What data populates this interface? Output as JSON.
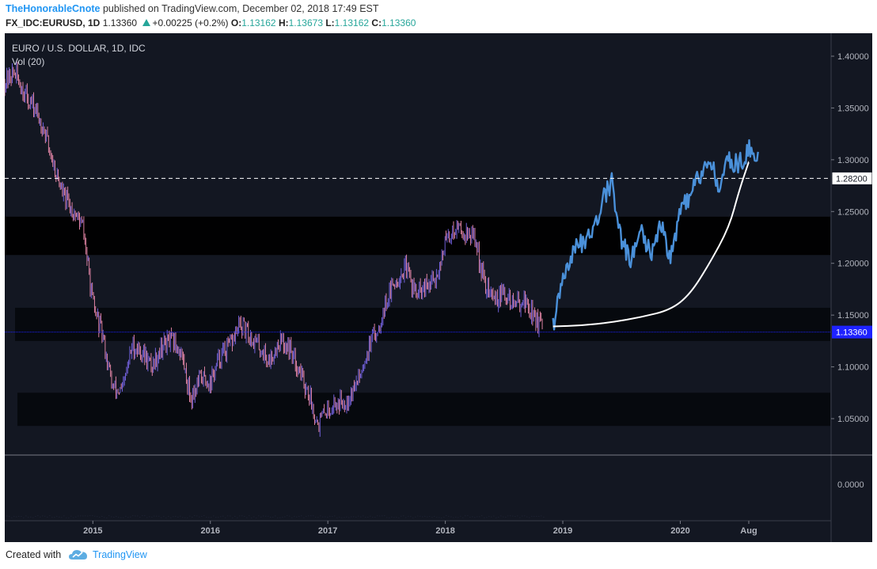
{
  "header": {
    "author": "TheHonorableCnote",
    "published_text": "published on TradingView.com, December 02, 2018 17:49 EST",
    "symbol": "FX_IDC:EURUSD, 1D",
    "last": "1.13360",
    "change": "+0.00225 (+0.2%)",
    "open_label": "O:",
    "open": "1.13162",
    "high_label": "H:",
    "high": "1.13673",
    "low_label": "L:",
    "low": "1.13162",
    "close_label": "C:",
    "close": "1.13360"
  },
  "legend": {
    "title": "EURO / U.S. DOLLAR, 1D, IDC",
    "volume": "Vol (20)"
  },
  "footer": {
    "created_with": "Created with",
    "brand": "TradingView",
    "logo_icon": "tradingview-cloud-icon"
  },
  "colors": {
    "background": "#131722",
    "candle_up": "#7b68ee",
    "candle_down": "#f48fb1",
    "projection": "#4a90d9",
    "curve": "#ffffff",
    "last_price_badge": "#1e22ff"
  },
  "chart_data": {
    "type": "candlestick",
    "title": "EURO / U.S. DOLLAR, 1D, IDC",
    "ylim": [
      1.03,
      1.4
    ],
    "y_ticks": [
      "1.40000",
      "1.35000",
      "1.30000",
      "1.25000",
      "1.20000",
      "1.15000",
      "1.10000",
      "1.05000"
    ],
    "volume_tick": "0.0000",
    "x_ticks": [
      "2015",
      "2016",
      "2017",
      "2018",
      "2019",
      "2020",
      "Aug"
    ],
    "price_series": [
      [
        "2014-04",
        1.375
      ],
      [
        "2014-05",
        1.385
      ],
      [
        "2014-06",
        1.365
      ],
      [
        "2014-07",
        1.35
      ],
      [
        "2014-08",
        1.33
      ],
      [
        "2014-09",
        1.295
      ],
      [
        "2014-10",
        1.265
      ],
      [
        "2014-11",
        1.25
      ],
      [
        "2014-12",
        1.235
      ],
      [
        "2015-01",
        1.16
      ],
      [
        "2015-02",
        1.13
      ],
      [
        "2015-03",
        1.08
      ],
      [
        "2015-04",
        1.075
      ],
      [
        "2015-05",
        1.12
      ],
      [
        "2015-06",
        1.115
      ],
      [
        "2015-07",
        1.1
      ],
      [
        "2015-08",
        1.12
      ],
      [
        "2015-09",
        1.125
      ],
      [
        "2015-10",
        1.115
      ],
      [
        "2015-11",
        1.07
      ],
      [
        "2015-12",
        1.09
      ],
      [
        "2016-01",
        1.085
      ],
      [
        "2016-02",
        1.11
      ],
      [
        "2016-03",
        1.12
      ],
      [
        "2016-04",
        1.14
      ],
      [
        "2016-05",
        1.13
      ],
      [
        "2016-06",
        1.12
      ],
      [
        "2016-07",
        1.105
      ],
      [
        "2016-08",
        1.125
      ],
      [
        "2016-09",
        1.12
      ],
      [
        "2016-10",
        1.1
      ],
      [
        "2016-11",
        1.075
      ],
      [
        "2016-12",
        1.045
      ],
      [
        "2017-01",
        1.06
      ],
      [
        "2017-02",
        1.065
      ],
      [
        "2017-03",
        1.07
      ],
      [
        "2017-04",
        1.085
      ],
      [
        "2017-05",
        1.115
      ],
      [
        "2017-06",
        1.135
      ],
      [
        "2017-07",
        1.165
      ],
      [
        "2017-08",
        1.185
      ],
      [
        "2017-09",
        1.195
      ],
      [
        "2017-10",
        1.17
      ],
      [
        "2017-11",
        1.175
      ],
      [
        "2017-12",
        1.185
      ],
      [
        "2018-01",
        1.22
      ],
      [
        "2018-02",
        1.235
      ],
      [
        "2018-03",
        1.23
      ],
      [
        "2018-04",
        1.225
      ],
      [
        "2018-05",
        1.18
      ],
      [
        "2018-06",
        1.165
      ],
      [
        "2018-07",
        1.17
      ],
      [
        "2018-08",
        1.16
      ],
      [
        "2018-09",
        1.165
      ],
      [
        "2018-10",
        1.15
      ],
      [
        "2018-11",
        1.135
      ]
    ],
    "projection_series": [
      [
        "2018-12",
        1.14
      ],
      [
        "2019-01",
        1.18
      ],
      [
        "2019-02",
        1.21
      ],
      [
        "2019-03",
        1.22
      ],
      [
        "2019-04",
        1.23
      ],
      [
        "2019-05",
        1.26
      ],
      [
        "2019-06",
        1.28
      ],
      [
        "2019-07",
        1.22
      ],
      [
        "2019-08",
        1.205
      ],
      [
        "2019-09",
        1.23
      ],
      [
        "2019-10",
        1.21
      ],
      [
        "2019-11",
        1.24
      ],
      [
        "2019-12",
        1.205
      ],
      [
        "2020-01",
        1.25
      ],
      [
        "2020-02",
        1.265
      ],
      [
        "2020-03",
        1.285
      ],
      [
        "2020-04",
        1.3
      ],
      [
        "2020-05",
        1.275
      ],
      [
        "2020-06",
        1.3
      ],
      [
        "2020-07",
        1.295
      ],
      [
        "2020-08",
        1.31
      ],
      [
        "2020-09",
        1.305
      ]
    ],
    "curve_series": [
      [
        "2018-12",
        1.139
      ],
      [
        "2019-03",
        1.14
      ],
      [
        "2019-06",
        1.143
      ],
      [
        "2019-09",
        1.148
      ],
      [
        "2019-12",
        1.155
      ],
      [
        "2020-02",
        1.17
      ],
      [
        "2020-04",
        1.2
      ],
      [
        "2020-06",
        1.235
      ],
      [
        "2020-07",
        1.27
      ],
      [
        "2020-08",
        1.298
      ]
    ],
    "zones": [
      {
        "from": 1.208,
        "to": 1.245,
        "shade": "dark",
        "x_from": "2014-04"
      },
      {
        "from": 1.125,
        "to": 1.157,
        "shade": "medium",
        "x_from": "2014-05"
      },
      {
        "from": 1.043,
        "to": 1.075,
        "shade": "medium",
        "x_from": "2014-05"
      }
    ],
    "dashed_level": {
      "value": 1.282,
      "label": "1.28200"
    },
    "last_price": {
      "value": 1.1336,
      "label": "1.13360"
    }
  }
}
